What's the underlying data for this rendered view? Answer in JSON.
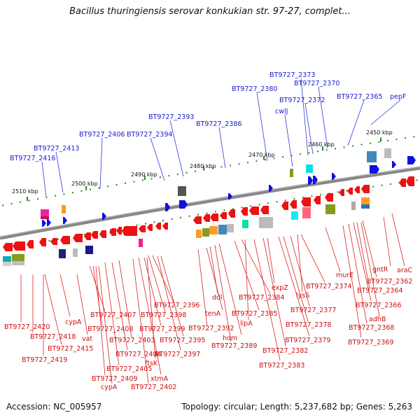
{
  "header": {
    "title": "Bacillus thuringiensis serovar konkukian str. 97-27, complet..."
  },
  "footer": {
    "accession": "Accession: NC_005957",
    "topology": "Topology: circular; Length: 5,237,682 bp; Genes: 5,263"
  },
  "kbp_labels": [
    "2510 kbp",
    "2500 kbp",
    "2490 kbp",
    "2480 kbp",
    "2470 kbp",
    "2460 kbp",
    "2450 kbp"
  ],
  "top_labels": [
    "BT9727_2416",
    "BT9727_2413",
    "BT9727_2406",
    "BT9727_2394",
    "BT9727_2393",
    "BT9727_2386",
    "BT9727_2380",
    "cwlJ",
    "BT9727_2373",
    "BT9727_2372",
    "BT9727_2370",
    "BT9727_2365",
    "pepF"
  ],
  "bottom_labels": [
    "BT9727_2420",
    "BT9727_2418",
    "BT9727_2419",
    "BT9727_2415",
    "cypA",
    "vat",
    "BT9727_2407",
    "BT9727_2408",
    "BT9727_2409",
    "cypA",
    "BT9727_2405",
    "BT9727_2404",
    "BT9727_2403",
    "xtmA",
    "BT9727_2402",
    "ftsK",
    "BT9727_2396",
    "BT9727_2398",
    "BT9727_2399",
    "BT9727_2395",
    "BT9727_2397",
    "BT9727_2392",
    "ddl",
    "tenA",
    "hom",
    "BT9727_2389",
    "BT9727_2384",
    "BT9727_2385",
    "lipA",
    "expZ",
    "BT9727_2382",
    "BT9727_2383",
    "BT9727_2374",
    "lysS",
    "BT9727_2377",
    "BT9727_2378",
    "BT9727_2379",
    "murE",
    "BT9727_2362",
    "araC",
    "gntR",
    "BT9727_2364",
    "BT9727_2366",
    "adhB",
    "BT9727_2368",
    "BT9727_2369"
  ],
  "colors": {
    "forward": "#1010e0",
    "reverse": "#ee1111",
    "backbone": "#808080",
    "tick": "#2a8a2a"
  }
}
